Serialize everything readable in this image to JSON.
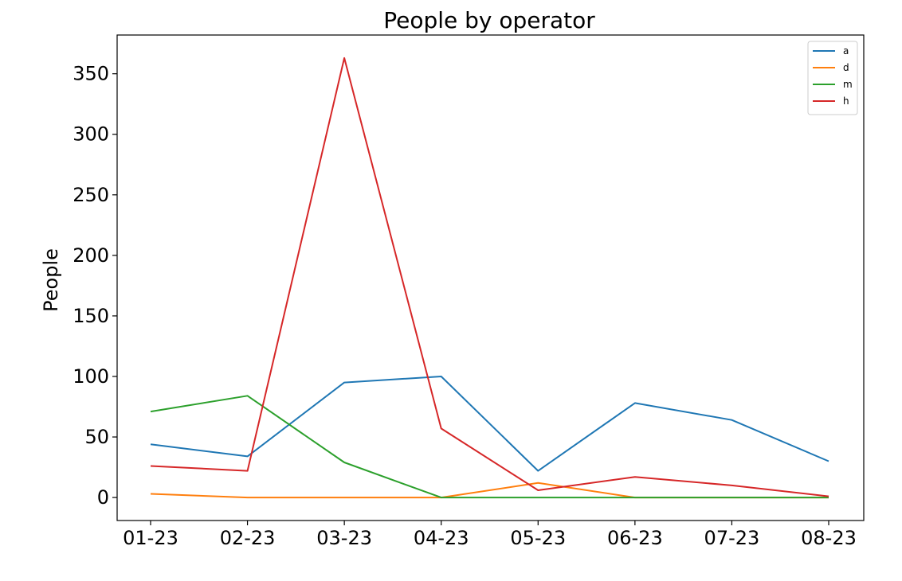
{
  "chart_data": {
    "type": "line",
    "title": "People by operator",
    "xlabel": "",
    "ylabel": "People",
    "categories": [
      "01-23",
      "02-23",
      "03-23",
      "04-23",
      "05-23",
      "06-23",
      "07-23",
      "08-23"
    ],
    "ylim": [
      -19,
      382
    ],
    "yticks": [
      0,
      50,
      100,
      150,
      200,
      250,
      300,
      350
    ],
    "grid": false,
    "legend_position": "top-right",
    "series": [
      {
        "name": "a",
        "color": "#1f77b4",
        "values": [
          44,
          34,
          95,
          100,
          22,
          78,
          64,
          30
        ]
      },
      {
        "name": "d",
        "color": "#ff7f0e",
        "values": [
          3,
          0,
          0,
          0,
          12,
          0,
          0,
          0
        ]
      },
      {
        "name": "m",
        "color": "#2ca02c",
        "values": [
          71,
          84,
          29,
          0,
          0,
          0,
          0,
          0
        ]
      },
      {
        "name": "h",
        "color": "#d62728",
        "values": [
          26,
          22,
          363,
          57,
          6,
          17,
          10,
          1
        ]
      }
    ]
  }
}
